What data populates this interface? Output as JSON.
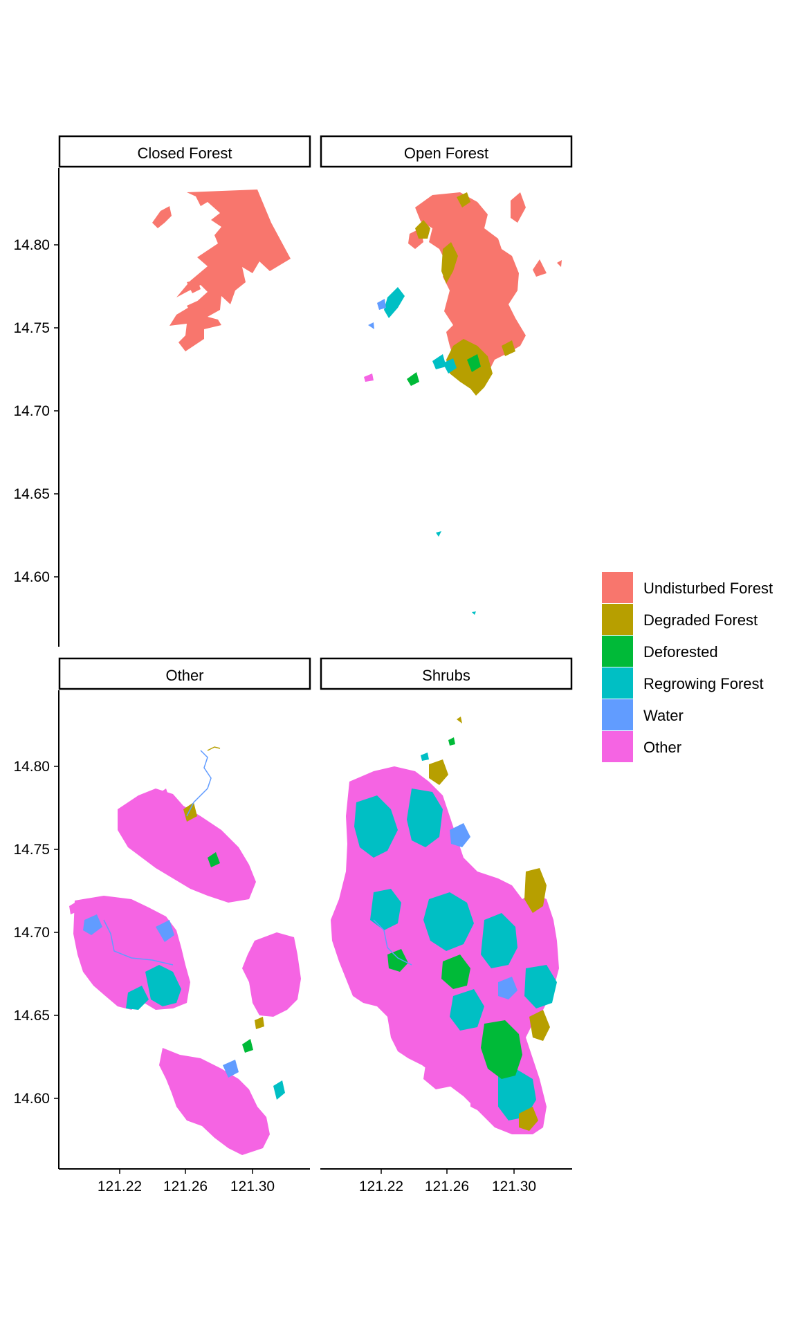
{
  "facets": [
    {
      "id": "closed-forest",
      "label": "Closed Forest"
    },
    {
      "id": "open-forest",
      "label": "Open Forest"
    },
    {
      "id": "other",
      "label": "Other"
    },
    {
      "id": "shrubs",
      "label": "Shrubs"
    }
  ],
  "axes": {
    "y_ticks": [
      "14.80",
      "14.75",
      "14.70",
      "14.65",
      "14.60"
    ],
    "x_ticks": [
      "121.22",
      "121.26",
      "121.30"
    ]
  },
  "legend": {
    "items": [
      {
        "label": "Undisturbed Forest",
        "color": "#F8766D"
      },
      {
        "label": "Degraded Forest",
        "color": "#B79F00"
      },
      {
        "label": "Deforested",
        "color": "#00BA38"
      },
      {
        "label": "Regrowing Forest",
        "color": "#00BFC4"
      },
      {
        "label": "Water",
        "color": "#619CFF"
      },
      {
        "label": "Other",
        "color": "#F564E3"
      }
    ]
  },
  "chart_data": {
    "type": "map",
    "facet_by": "land cover class",
    "y_ticks": [
      14.8,
      14.75,
      14.7,
      14.65,
      14.6
    ],
    "x_ticks": [
      121.22,
      121.26,
      121.3
    ],
    "x_range": [
      121.18,
      121.335
    ],
    "y_range": [
      14.555,
      14.845
    ]
  }
}
